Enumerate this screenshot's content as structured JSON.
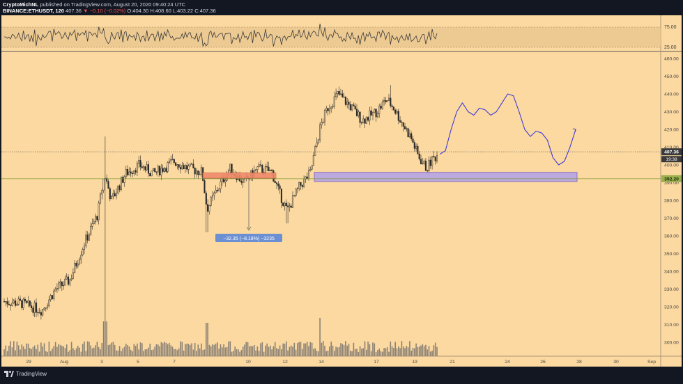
{
  "header": {
    "author": "CryptoMichNL",
    "published": "published on TradingView.com, August 20, 2020 09:40:24 UTC",
    "symbol": "BINANCE:ETHUSDT, 120",
    "last": "407.36",
    "change": "▼ −0.10 (−0.02%)",
    "ohlc_o": "O:404.30",
    "ohlc_h": "H:408.60",
    "ohlc_l": "L:403.22",
    "ohlc_c": "C:407.36"
  },
  "colors": {
    "chart_bg": "#fcd9a0",
    "frame_bg": "#131722",
    "candle": "#2a2a2a",
    "volume": "#8a8176",
    "rsi_line": "#3a3a3a",
    "rsi_band": "#e9c58e",
    "projection": "#3b3bd6",
    "resistance_box": "#f08a6a",
    "support_box": "#b6a4e4",
    "support_line": "#7a9a3a",
    "support_label": "#9ab04f",
    "measure_label": "#6b8fd3",
    "price_label": "#3a3a3a"
  },
  "chart_data": {
    "type": "candlestick",
    "title": "",
    "xlabel": "",
    "ylabel": "",
    "ylim": [
      290,
      464
    ],
    "y_ticks": [
      "460.00",
      "450.00",
      "440.00",
      "430.00",
      "420.00",
      "410.00",
      "400.00",
      "390.00",
      "380.00",
      "370.00",
      "360.00",
      "350.00",
      "340.00",
      "330.00",
      "320.00",
      "310.00",
      "300.00"
    ],
    "x_ticks": [
      "29",
      "Aug",
      "3",
      "5",
      "7",
      "10",
      "12",
      "14",
      "17",
      "19",
      "21",
      "24",
      "26",
      "28",
      "30",
      "Sep"
    ],
    "rsi_ticks": [
      "75.00",
      "25.00"
    ],
    "current_price_label": "407.36",
    "countdown_label": "19:38",
    "support_level_label": "392.20",
    "measurement_label": "−32.35 (−8.18%) −3235",
    "grid": false,
    "key_prices": {
      "start": 323,
      "wick_high_aug2": 416,
      "wick_low_aug2": 307,
      "range_high": 406,
      "range_low": 362,
      "breakout_high": 445,
      "current": 407.36,
      "support": 392.2
    },
    "projection_path_prices": [
      406,
      408,
      420,
      430,
      435,
      430,
      428,
      432,
      431,
      428,
      430,
      435,
      440,
      439,
      430,
      420,
      416,
      419,
      418,
      414,
      404,
      400,
      402,
      410,
      420
    ]
  },
  "footer": {
    "brand": "TradingView"
  }
}
